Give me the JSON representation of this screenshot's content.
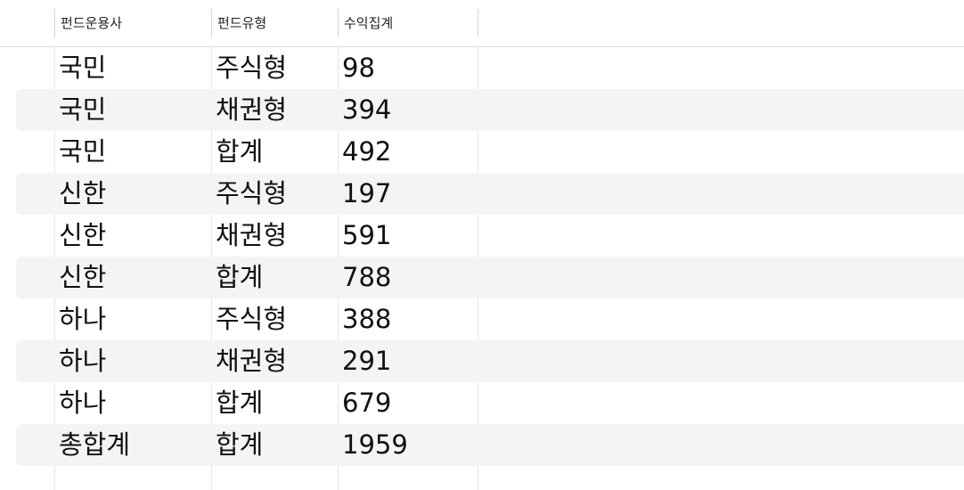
{
  "table": {
    "columns": [
      "펀드운용사",
      "펀드유형",
      "수익집계"
    ],
    "rows": [
      [
        "국민",
        "주식형",
        "98"
      ],
      [
        "국민",
        "채권형",
        "394"
      ],
      [
        "국민",
        "합계",
        "492"
      ],
      [
        "신한",
        "주식형",
        "197"
      ],
      [
        "신한",
        "채권형",
        "591"
      ],
      [
        "신한",
        "합계",
        "788"
      ],
      [
        "하나",
        "주식형",
        "388"
      ],
      [
        "하나",
        "채권형",
        "291"
      ],
      [
        "하나",
        "합계",
        "679"
      ],
      [
        "총합계",
        "합계",
        "1959"
      ]
    ]
  },
  "colors": {
    "stripe": "#f4f4f4",
    "gridline": "#d4d4d4",
    "text": "#111111"
  }
}
